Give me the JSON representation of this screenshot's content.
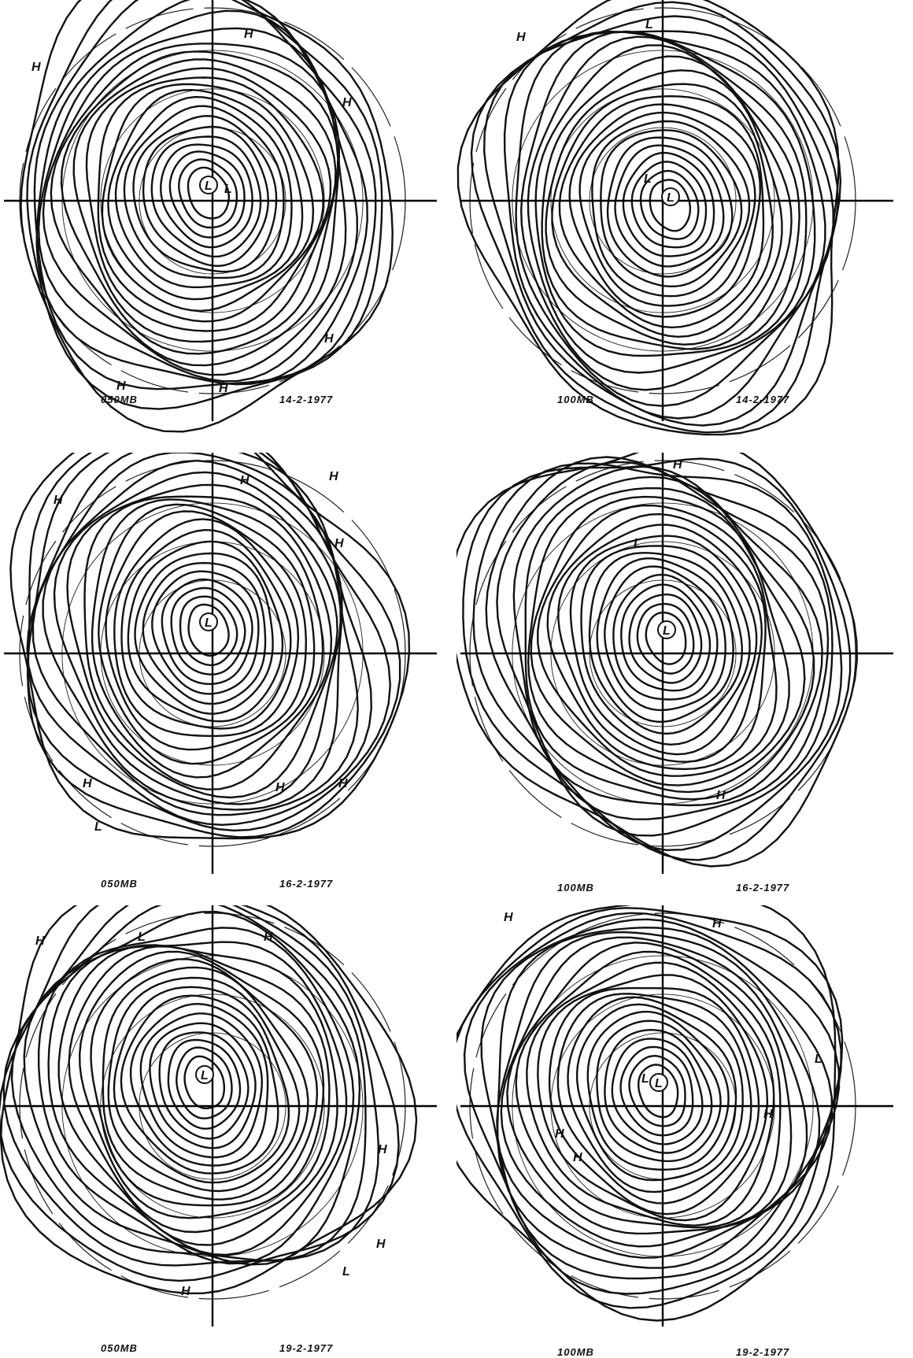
{
  "figure": {
    "panels": [
      {
        "level": "050MB",
        "date": "14-2-1977",
        "center_marker": "L",
        "pressure_markers": [
          "H",
          "H",
          "H",
          "H",
          "H",
          "H",
          "L"
        ]
      },
      {
        "level": "100MB",
        "date": "14-2-1977",
        "center_marker": "L",
        "pressure_markers": [
          "H",
          "L",
          "L"
        ]
      },
      {
        "level": "050MB",
        "date": "16-2-1977",
        "center_marker": "L",
        "pressure_markers": [
          "H",
          "H",
          "H",
          "H",
          "H",
          "H",
          "H",
          "L"
        ]
      },
      {
        "level": "100MB",
        "date": "16-2-1977",
        "center_marker": "L",
        "pressure_markers": [
          "H",
          "L",
          "H"
        ]
      },
      {
        "level": "050MB",
        "date": "19-2-1977",
        "center_marker": "L",
        "pressure_markers": [
          "H",
          "H",
          "L",
          "H",
          "H",
          "L",
          "H"
        ]
      },
      {
        "level": "100MB",
        "date": "19-2-1977",
        "center_marker": "L",
        "pressure_markers": [
          "H",
          "H",
          "L",
          "H",
          "H",
          "H",
          "L"
        ]
      }
    ]
  }
}
